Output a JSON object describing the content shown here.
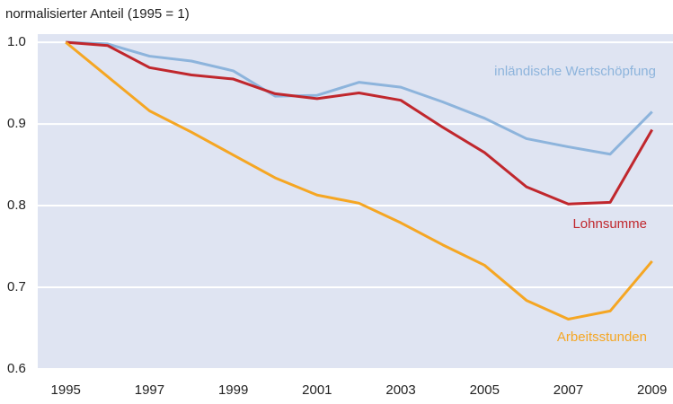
{
  "chart_data": {
    "type": "line",
    "title": "normalisierter Anteil (1995 = 1)",
    "x": [
      1995,
      1996,
      1997,
      1998,
      1999,
      2000,
      2001,
      2002,
      2003,
      2004,
      2005,
      2006,
      2007,
      2008,
      2009
    ],
    "series": [
      {
        "name": "inländische Wertschöpfung",
        "color": "#8db4dc",
        "values": [
          1.0,
          0.998,
          0.983,
          0.977,
          0.965,
          0.934,
          0.935,
          0.951,
          0.945,
          0.927,
          0.907,
          0.882,
          0.872,
          0.863,
          0.915
        ]
      },
      {
        "name": "Lohnsumme",
        "color": "#c0272d",
        "values": [
          1.0,
          0.996,
          0.969,
          0.96,
          0.955,
          0.937,
          0.931,
          0.938,
          0.929,
          0.896,
          0.865,
          0.823,
          0.802,
          0.804,
          0.893
        ]
      },
      {
        "name": "Arbeitsstunden",
        "color": "#f5a623",
        "values": [
          1.0,
          0.958,
          0.916,
          0.89,
          0.862,
          0.834,
          0.813,
          0.803,
          0.779,
          0.752,
          0.727,
          0.684,
          0.661,
          0.671,
          0.732
        ]
      }
    ],
    "xlim": [
      1994.33,
      2009.5
    ],
    "xticks": [
      1995,
      1997,
      1999,
      2001,
      2003,
      2005,
      2007,
      2009
    ],
    "ylim": [
      0.6,
      1.01
    ],
    "yticks": [
      0.6,
      0.7,
      0.8,
      0.9,
      {
        "value": 1,
        "label": "1.0"
      }
    ],
    "grid": true
  }
}
